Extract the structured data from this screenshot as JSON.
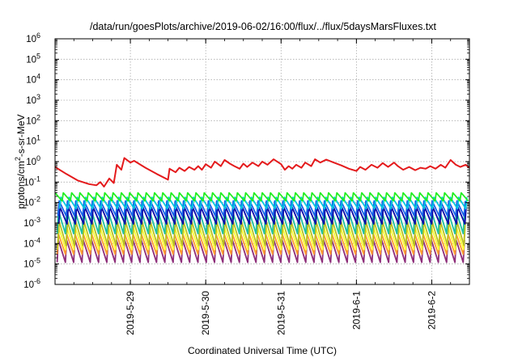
{
  "chart_data": {
    "type": "line",
    "title": "/data/run/goesPlots/archive/2019-06-02/16:00/flux/../flux/5daysMarsFluxes.txt",
    "xlabel": "Coordinated Universal Time (UTC)",
    "ylabel_parts": {
      "base": "protons/cm",
      "sup": "2",
      "rest": "-s-sr-MeV"
    },
    "y_scale": "log",
    "ylim_exp": [
      -6,
      6
    ],
    "yticks": [
      {
        "base": "10",
        "exp": "-6"
      },
      {
        "base": "10",
        "exp": "-5"
      },
      {
        "base": "10",
        "exp": "-4"
      },
      {
        "base": "10",
        "exp": "-3"
      },
      {
        "base": "10",
        "exp": "-2"
      },
      {
        "base": "10",
        "exp": "-1"
      },
      {
        "base": "10",
        "exp": "0"
      },
      {
        "base": "10",
        "exp": "1"
      },
      {
        "base": "10",
        "exp": "2"
      },
      {
        "base": "10",
        "exp": "3"
      },
      {
        "base": "10",
        "exp": "4"
      },
      {
        "base": "10",
        "exp": "5"
      },
      {
        "base": "10",
        "exp": "6"
      }
    ],
    "xlim_days": [
      0,
      5.5
    ],
    "xticks": [
      {
        "label": "2019-5-29",
        "day": 1
      },
      {
        "label": "2019-5-30",
        "day": 2
      },
      {
        "label": "2019-5-31",
        "day": 3
      },
      {
        "label": "2019-6-1",
        "day": 4
      },
      {
        "label": "2019-6-2",
        "day": 5
      }
    ],
    "grid": true,
    "series": [
      {
        "color": "#e41a1c",
        "kind": "red",
        "points": [
          [
            0,
            0.55
          ],
          [
            0.15,
            0.25
          ],
          [
            0.3,
            0.12
          ],
          [
            0.45,
            0.08
          ],
          [
            0.55,
            0.07
          ],
          [
            0.6,
            0.1
          ],
          [
            0.65,
            0.06
          ],
          [
            0.72,
            0.15
          ],
          [
            0.78,
            0.09
          ],
          [
            0.82,
            0.7
          ],
          [
            0.88,
            0.4
          ],
          [
            0.92,
            1.5
          ],
          [
            1.0,
            0.9
          ],
          [
            1.05,
            1.1
          ],
          [
            1.2,
            0.5
          ],
          [
            1.35,
            0.25
          ],
          [
            1.5,
            0.13
          ],
          [
            1.52,
            0.45
          ],
          [
            1.6,
            0.3
          ],
          [
            1.65,
            0.5
          ],
          [
            1.72,
            0.35
          ],
          [
            1.78,
            0.55
          ],
          [
            1.85,
            0.4
          ],
          [
            1.9,
            0.6
          ],
          [
            1.95,
            0.4
          ],
          [
            2.0,
            0.75
          ],
          [
            2.07,
            0.5
          ],
          [
            2.12,
            1.0
          ],
          [
            2.2,
            0.6
          ],
          [
            2.25,
            1.2
          ],
          [
            2.32,
            0.8
          ],
          [
            2.38,
            0.6
          ],
          [
            2.45,
            0.45
          ],
          [
            2.5,
            0.8
          ],
          [
            2.55,
            0.55
          ],
          [
            2.62,
            0.9
          ],
          [
            2.7,
            0.6
          ],
          [
            2.75,
            1.0
          ],
          [
            2.82,
            0.7
          ],
          [
            2.9,
            1.3
          ],
          [
            3.0,
            0.75
          ],
          [
            3.05,
            0.4
          ],
          [
            3.1,
            0.6
          ],
          [
            3.15,
            0.45
          ],
          [
            3.2,
            0.7
          ],
          [
            3.27,
            0.5
          ],
          [
            3.32,
            0.9
          ],
          [
            3.4,
            0.6
          ],
          [
            3.45,
            1.3
          ],
          [
            3.52,
            0.9
          ],
          [
            3.6,
            1.25
          ],
          [
            3.7,
            0.9
          ],
          [
            3.8,
            0.65
          ],
          [
            3.9,
            0.45
          ],
          [
            4.0,
            0.35
          ],
          [
            4.05,
            0.55
          ],
          [
            4.12,
            0.4
          ],
          [
            4.2,
            0.7
          ],
          [
            4.28,
            0.5
          ],
          [
            4.35,
            0.85
          ],
          [
            4.42,
            0.55
          ],
          [
            4.5,
            0.9
          ],
          [
            4.55,
            0.6
          ],
          [
            4.62,
            0.4
          ],
          [
            4.7,
            0.55
          ],
          [
            4.78,
            0.38
          ],
          [
            4.85,
            0.5
          ],
          [
            4.92,
            0.45
          ],
          [
            4.98,
            0.6
          ],
          [
            5.05,
            0.45
          ],
          [
            5.12,
            0.7
          ],
          [
            5.18,
            0.5
          ],
          [
            5.25,
            1.2
          ],
          [
            5.32,
            0.7
          ],
          [
            5.38,
            0.55
          ],
          [
            5.45,
            0.7
          ],
          [
            5.5,
            0.5
          ]
        ]
      },
      {
        "color": "#22ee22",
        "kind": "saw",
        "hi": 0.03,
        "lo": 0.012,
        "phase": 0.0
      },
      {
        "color": "#00c8e0",
        "kind": "saw",
        "hi": 0.018,
        "lo": 0.005,
        "phase": 0.3
      },
      {
        "color": "#1560e8",
        "kind": "saw",
        "hi": 0.012,
        "lo": 0.0022,
        "phase": 0.5
      },
      {
        "color": "#0a0aa8",
        "kind": "saw",
        "hi": 0.006,
        "lo": 0.0009,
        "phase": 0.4
      },
      {
        "color": "#20c0a0",
        "kind": "saw",
        "hi": 0.004,
        "lo": 0.0003,
        "phase": 0.6
      },
      {
        "color": "#b8c020",
        "kind": "saw",
        "hi": 0.0012,
        "lo": 8e-05,
        "phase": 0.5
      },
      {
        "color": "#ffff30",
        "kind": "saw",
        "hi": 0.0006,
        "lo": 5e-05,
        "phase": 0.55
      },
      {
        "color": "#ff9a30",
        "kind": "saw",
        "hi": 0.0003,
        "lo": 3e-05,
        "phase": 0.6
      },
      {
        "color": "#8e2e7a",
        "kind": "saw",
        "hi": 0.00015,
        "lo": 1.2e-05,
        "phase": 0.6
      }
    ],
    "saw_period_days": 0.11
  }
}
